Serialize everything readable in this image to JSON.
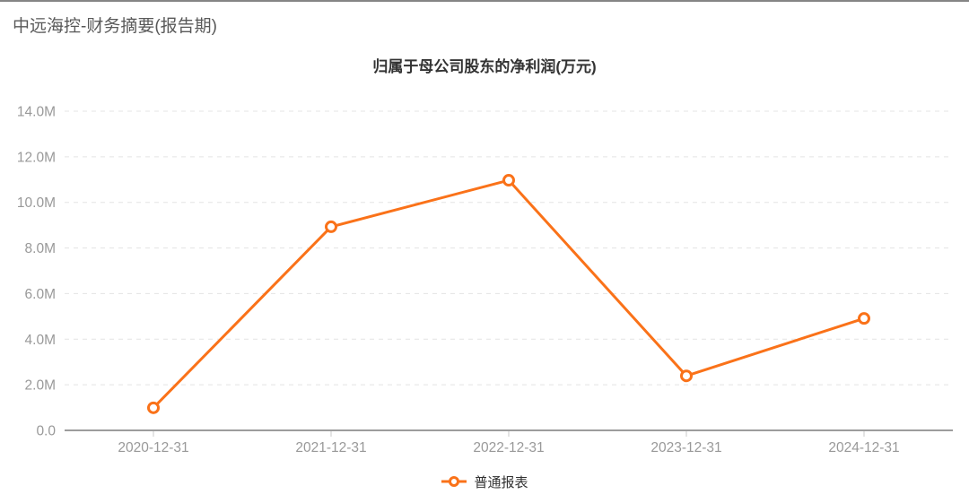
{
  "page": {
    "header_title": "中远海控-财务摘要(报告期)"
  },
  "colors": {
    "accent": "#fa7219",
    "marker_fill": "#ffffff",
    "grid_line": "#e4e4e4",
    "axis_line": "#9c9c9c",
    "axis_tick": "#c9c9c9",
    "axis_label_text": "#999999",
    "chart_title_text": "#333333",
    "header_text": "#595959",
    "legend_text": "#333333",
    "top_border": "#858585"
  },
  "chart_data": {
    "type": "line",
    "title": "归属于母公司股东的净利润(万元)",
    "categories": [
      "2020-12-31",
      "2021-12-31",
      "2022-12-31",
      "2023-12-31",
      "2024-12-31"
    ],
    "series": [
      {
        "name": "普通报表",
        "values": [
          990000,
          8930000,
          10970000,
          2390000,
          4910000
        ],
        "color": "#fa7219",
        "marker": "hollow-circle"
      }
    ],
    "xlabel": "",
    "ylabel": "",
    "ylim": [
      0,
      14000000
    ],
    "y_tick_interval": 2000000,
    "y_tick_labels": [
      "0.0",
      "2.0M",
      "4.0M",
      "6.0M",
      "8.0M",
      "10.0M",
      "12.0M",
      "14.0M"
    ],
    "grid": "horizontal-dashed",
    "legend_position": "bottom-center"
  }
}
